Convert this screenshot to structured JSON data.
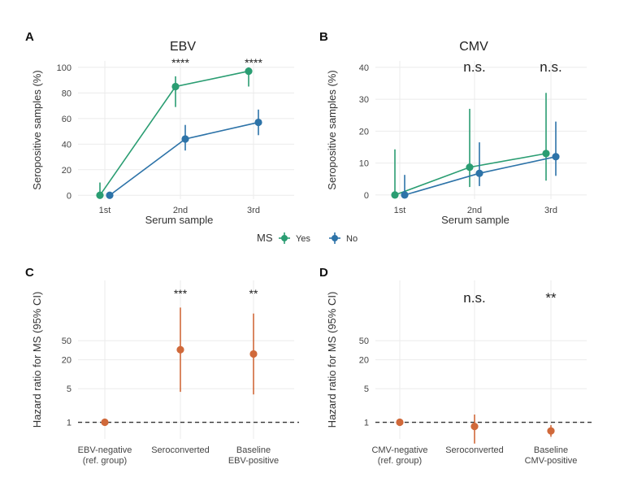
{
  "legend": {
    "title": "MS",
    "items": [
      {
        "label": "Yes",
        "color": "#2a9d72"
      },
      {
        "label": "No",
        "color": "#2d73a8"
      }
    ]
  },
  "colors": {
    "yes": "#2a9d72",
    "no": "#2d73a8",
    "hr": "#d0693a",
    "reference_line": "#333333"
  },
  "chart_data": [
    {
      "panel": "A",
      "type": "line",
      "title": "EBV",
      "xlabel": "Serum sample",
      "ylabel": "Seropositive samples (%)",
      "categories": [
        "1st",
        "2nd",
        "3rd"
      ],
      "ylim": [
        -3,
        105
      ],
      "yticks": [
        0,
        20,
        40,
        60,
        80,
        100
      ],
      "grid": true,
      "series": [
        {
          "name": "Yes",
          "values": [
            0,
            85,
            97
          ],
          "lower": [
            0,
            69,
            85
          ],
          "upper": [
            10,
            93,
            100
          ]
        },
        {
          "name": "No",
          "values": [
            0,
            44,
            57
          ],
          "lower": [
            0,
            35,
            47
          ],
          "upper": [
            0,
            55,
            67
          ]
        }
      ],
      "significance": [
        "",
        "****",
        "****"
      ]
    },
    {
      "panel": "B",
      "type": "line",
      "title": "CMV",
      "xlabel": "Serum sample",
      "ylabel": "Seropositive samples (%)",
      "categories": [
        "1st",
        "2nd",
        "3rd"
      ],
      "ylim": [
        -1.3,
        42
      ],
      "yticks": [
        0,
        10,
        20,
        30,
        40
      ],
      "grid": true,
      "series": [
        {
          "name": "Yes",
          "values": [
            0,
            8.7,
            13
          ],
          "lower": [
            0,
            2.5,
            4.5
          ],
          "upper": [
            14.3,
            27,
            32
          ]
        },
        {
          "name": "No",
          "values": [
            0,
            6.8,
            12
          ],
          "lower": [
            0,
            2.8,
            6
          ],
          "upper": [
            6.3,
            16.5,
            23
          ]
        }
      ],
      "significance": [
        "",
        "n.s.",
        "n.s."
      ]
    },
    {
      "panel": "C",
      "type": "scatter",
      "xlabel": "",
      "ylabel": "Hazard ratio for MS (95% CI)",
      "scale": "log",
      "ylim": [
        0.45,
        900
      ],
      "yticks": [
        1,
        5,
        20,
        50
      ],
      "grid": true,
      "reference_line": 1,
      "categories": [
        [
          "EBV-negative",
          "(ref. group)"
        ],
        [
          "Seroconverted"
        ],
        [
          "Baseline",
          "EBV-positive"
        ]
      ],
      "values": [
        1,
        32.4,
        26.5
      ],
      "lower": [
        1,
        4.3,
        3.8
      ],
      "upper": [
        1,
        245,
        184
      ],
      "significance": [
        "",
        "***",
        "**"
      ]
    },
    {
      "panel": "D",
      "type": "scatter",
      "xlabel": "",
      "ylabel": "Hazard ratio for MS (95% CI)",
      "scale": "log",
      "ylim": [
        0.45,
        900
      ],
      "yticks": [
        1,
        5,
        20,
        50
      ],
      "grid": true,
      "reference_line": 1,
      "categories": [
        [
          "CMV-negative",
          "(ref. group)"
        ],
        [
          "Seroconverted"
        ],
        [
          "Baseline",
          "CMV-positive"
        ]
      ],
      "values": [
        1,
        0.82,
        0.66
      ],
      "lower": [
        1,
        0.36,
        0.5
      ],
      "upper": [
        1,
        1.45,
        0.87
      ],
      "significance": [
        "",
        "n.s.",
        "**"
      ]
    }
  ]
}
